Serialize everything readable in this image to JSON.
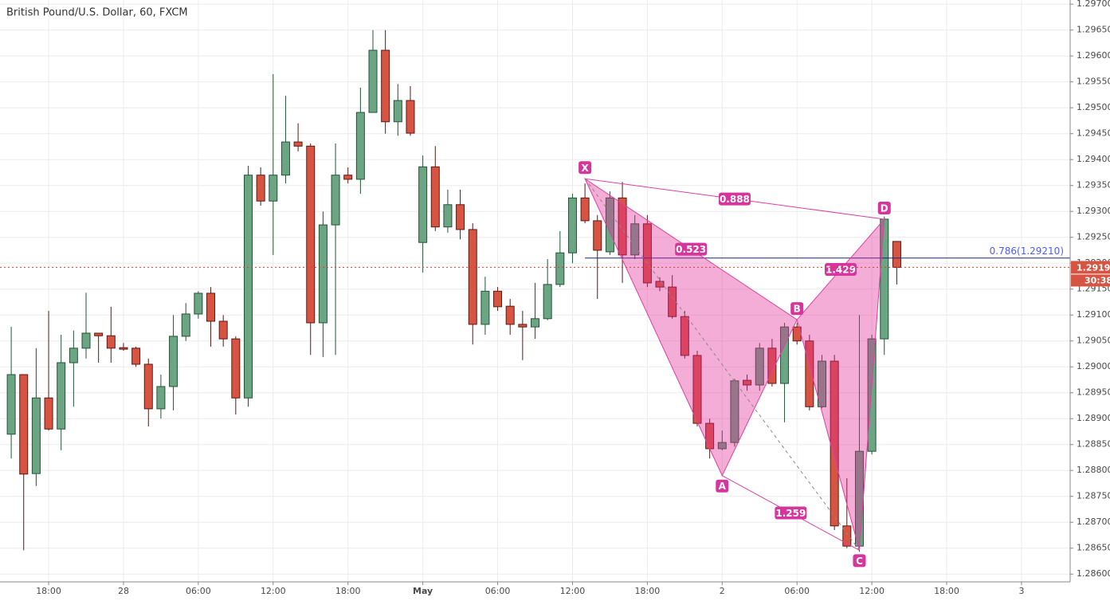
{
  "chart_data": {
    "type": "candlestick",
    "title": "British Pound/U.S. Dollar, 60, FXCM",
    "up_color": "#6ba583",
    "down_color": "#d75442",
    "up_border": "#225437",
    "down_border": "#5b1a13",
    "series": {
      "open": [
        1.2887,
        1.28985,
        1.28794,
        1.2894,
        1.2888,
        1.29008,
        1.29036,
        1.29065,
        1.2906,
        1.29037,
        1.29036,
        1.29005,
        1.28919,
        1.28962,
        1.29059,
        1.29102,
        1.29142,
        1.29088,
        1.29054,
        1.2894,
        1.2937,
        1.2932,
        1.2937,
        1.29434,
        1.29426,
        1.29085,
        1.29274,
        1.2937,
        1.29362,
        1.29491,
        1.29611,
        1.29473,
        1.29514,
        1.2924,
        1.29386,
        1.2927,
        1.29313,
        1.29265,
        1.29082,
        1.29146,
        1.29117,
        1.29082,
        1.29077,
        1.29093,
        1.29159,
        1.2922,
        1.29326,
        1.29282,
        1.29222,
        1.29326,
        1.29216,
        1.29276,
        1.29165,
        1.29154,
        1.29097,
        1.29022,
        1.28891,
        1.28842,
        1.28854,
        1.28974,
        1.28965,
        1.29036,
        1.28968,
        1.29077,
        1.2905,
        1.28923,
        1.29011,
        1.28693,
        1.28654,
        1.28837,
        1.29054,
        1.29242
      ],
      "high": [
        1.29077,
        1.28985,
        1.29036,
        1.29108,
        1.29062,
        1.2907,
        1.29143,
        1.29065,
        1.29116,
        1.29046,
        1.29039,
        1.29016,
        1.28985,
        1.291,
        1.29123,
        1.29146,
        1.29154,
        1.291,
        1.29059,
        1.29388,
        1.29385,
        1.29565,
        1.29523,
        1.2947,
        1.29431,
        1.293,
        1.29431,
        1.29385,
        1.29539,
        1.2965,
        1.2965,
        1.29546,
        1.29542,
        1.29408,
        1.29426,
        1.29342,
        1.29342,
        1.29277,
        1.29174,
        1.29154,
        1.29131,
        1.29108,
        1.29162,
        1.29208,
        1.29262,
        1.29334,
        1.29354,
        1.29293,
        1.29339,
        1.29357,
        1.29293,
        1.29293,
        1.29173,
        1.29177,
        1.29108,
        1.29031,
        1.289,
        1.28877,
        1.28977,
        1.28985,
        1.29046,
        1.29054,
        1.29085,
        1.29085,
        1.29062,
        1.29023,
        1.29023,
        1.28785,
        1.291,
        1.29062,
        1.2929,
        1.29242
      ],
      "low": [
        1.28823,
        1.28646,
        1.2877,
        1.28877,
        1.28839,
        1.28923,
        1.29016,
        1.29008,
        1.29008,
        1.29031,
        1.29,
        1.28885,
        1.289,
        1.28916,
        1.2905,
        1.29093,
        1.29039,
        1.29039,
        1.28908,
        1.28923,
        1.29311,
        1.29216,
        1.29354,
        1.29416,
        1.29023,
        1.29019,
        1.29023,
        1.29354,
        1.29334,
        1.29491,
        1.2945,
        1.29446,
        1.29446,
        1.29182,
        1.29262,
        1.29259,
        1.29246,
        1.29043,
        1.29062,
        1.29108,
        1.29062,
        1.29013,
        1.29054,
        1.2909,
        1.29154,
        1.292,
        1.29277,
        1.29131,
        1.29216,
        1.29162,
        1.29208,
        1.29154,
        1.29146,
        1.29093,
        1.29016,
        1.28885,
        1.28823,
        1.28839,
        1.28846,
        1.28954,
        1.28954,
        1.28962,
        1.28893,
        1.29043,
        1.28916,
        1.2892,
        1.28685,
        1.2865,
        1.28643,
        1.28831,
        1.29023,
        1.29159
      ],
      "close": [
        1.28985,
        1.28793,
        1.2894,
        1.2888,
        1.29008,
        1.29036,
        1.29065,
        1.2906,
        1.29036,
        1.29034,
        1.29005,
        1.28919,
        1.28962,
        1.29059,
        1.29102,
        1.29142,
        1.29088,
        1.29054,
        1.2894,
        1.2937,
        1.2932,
        1.2937,
        1.29434,
        1.29426,
        1.29085,
        1.29274,
        1.2937,
        1.29362,
        1.29491,
        1.29611,
        1.29473,
        1.29514,
        1.29451,
        1.29386,
        1.2927,
        1.29313,
        1.29265,
        1.29082,
        1.29146,
        1.29116,
        1.29082,
        1.29077,
        1.29093,
        1.29159,
        1.2922,
        1.29326,
        1.29282,
        1.29225,
        1.29326,
        1.29216,
        1.29276,
        1.29162,
        1.29154,
        1.29097,
        1.29022,
        1.28891,
        1.28842,
        1.28854,
        1.28973,
        1.28965,
        1.29036,
        1.28968,
        1.29077,
        1.2905,
        1.28923,
        1.29011,
        1.28693,
        1.28654,
        1.28837,
        1.29054,
        1.29285,
        1.29192
      ]
    },
    "xlim": [
      -0.9,
      84.9
    ],
    "xticks": [
      {
        "value": 3,
        "label": "18:00"
      },
      {
        "value": 9,
        "label": "28"
      },
      {
        "value": 15,
        "label": "06:00"
      },
      {
        "value": 21,
        "label": "12:00"
      },
      {
        "value": 27,
        "label": "18:00"
      },
      {
        "value": 33,
        "label": "May"
      },
      {
        "value": 39,
        "label": "06:00"
      },
      {
        "value": 45,
        "label": "12:00"
      },
      {
        "value": 51,
        "label": "18:00"
      },
      {
        "value": 57,
        "label": "2"
      },
      {
        "value": 63,
        "label": "06:00"
      },
      {
        "value": 69,
        "label": "12:00"
      },
      {
        "value": 75,
        "label": "18:00"
      },
      {
        "value": 81,
        "label": "3"
      }
    ],
    "ylim": [
      1.28585,
      1.29708
    ],
    "yticks": [
      {
        "value": 1.286,
        "label": "1.28600"
      },
      {
        "value": 1.2865,
        "label": "1.28650"
      },
      {
        "value": 1.287,
        "label": "1.28700"
      },
      {
        "value": 1.2875,
        "label": "1.28750"
      },
      {
        "value": 1.288,
        "label": "1.28800"
      },
      {
        "value": 1.2885,
        "label": "1.28850"
      },
      {
        "value": 1.289,
        "label": "1.28900"
      },
      {
        "value": 1.2895,
        "label": "1.28950"
      },
      {
        "value": 1.29,
        "label": "1.29000"
      },
      {
        "value": 1.2905,
        "label": "1.29050"
      },
      {
        "value": 1.291,
        "label": "1.29100"
      },
      {
        "value": 1.2915,
        "label": "1.29150"
      },
      {
        "value": 1.292,
        "label": "1.29200"
      },
      {
        "value": 1.2925,
        "label": "1.29250"
      },
      {
        "value": 1.293,
        "label": "1.29300"
      },
      {
        "value": 1.2935,
        "label": "1.29350"
      },
      {
        "value": 1.294,
        "label": "1.29400"
      },
      {
        "value": 1.2945,
        "label": "1.29450"
      },
      {
        "value": 1.295,
        "label": "1.29500"
      },
      {
        "value": 1.2955,
        "label": "1.29550"
      },
      {
        "value": 1.296,
        "label": "1.29600"
      },
      {
        "value": 1.2965,
        "label": "1.29650"
      },
      {
        "value": 1.297,
        "label": "1.29700"
      }
    ],
    "grid": true,
    "last_price": 1.29192,
    "countdown": "30:38",
    "fib_level": {
      "value": 1.2921,
      "label": "0.786(1.29210)"
    },
    "pattern": {
      "color": "#e040a0",
      "points": [
        {
          "label": "X",
          "x": 46,
          "y": 1.29363
        },
        {
          "label": "A",
          "x": 57,
          "y": 1.2879
        },
        {
          "label": "B",
          "x": 63,
          "y": 1.29091
        },
        {
          "label": "C",
          "x": 68,
          "y": 1.28646
        },
        {
          "label": "D",
          "x": 70,
          "y": 1.29285
        }
      ],
      "ratios": [
        0.888,
        0.523,
        1.429,
        1.259
      ]
    }
  }
}
